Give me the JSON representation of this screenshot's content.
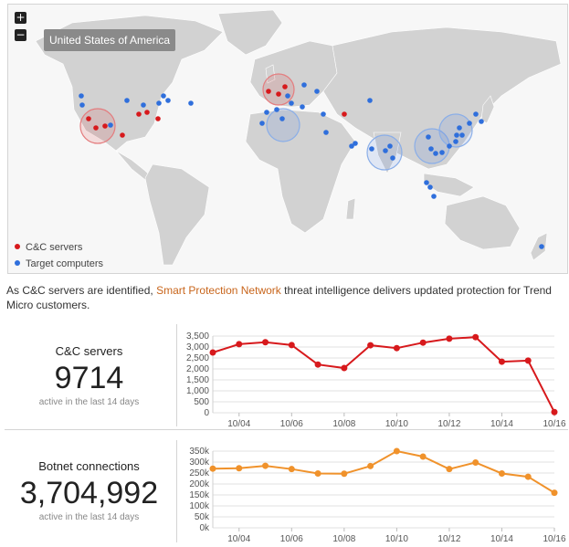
{
  "map": {
    "zoom_in": "+",
    "zoom_out": "−",
    "tooltip": "United States of America",
    "legend": [
      {
        "label": "C&C servers",
        "color": "#d7191c"
      },
      {
        "label": "Target computers",
        "color": "#2f6fdc"
      }
    ],
    "colors": {
      "land": "#d2d2d2",
      "water": "#f7f7f7",
      "cc": "#d7191c",
      "target": "#2f6fdc"
    }
  },
  "blurb": {
    "before": "As C&C servers are identified, ",
    "link": "Smart Protection Network",
    "after": " threat intelligence delivers updated protection for Trend Micro customers."
  },
  "stats": [
    {
      "label": "C&C servers",
      "value": "9714",
      "sub": "active in the last 14 days"
    },
    {
      "label": "Botnet connections",
      "value": "3,704,992",
      "sub": "active in the last 14 days"
    }
  ],
  "chart_data": [
    {
      "type": "line",
      "x": [
        "10/03",
        "10/04",
        "10/05",
        "10/06",
        "10/07",
        "10/08",
        "10/09",
        "10/10",
        "10/11",
        "10/12",
        "10/13",
        "10/14",
        "10/15",
        "10/16"
      ],
      "x_tick_labels": [
        "10/04",
        "10/06",
        "10/08",
        "10/10",
        "10/12",
        "10/14",
        "10/16"
      ],
      "series": [
        {
          "values": [
            2750,
            3130,
            3220,
            3090,
            2200,
            2040,
            3080,
            2950,
            3200,
            3380,
            3450,
            2330,
            2380,
            30
          ]
        }
      ],
      "ylim": [
        0,
        3500
      ],
      "y_ticks": [
        "0",
        "500",
        "1,000",
        "1,500",
        "2,000",
        "2,500",
        "3,000",
        "3,500"
      ],
      "color": "#d7191c",
      "grid": true
    },
    {
      "type": "line",
      "x": [
        "10/03",
        "10/04",
        "10/05",
        "10/06",
        "10/07",
        "10/08",
        "10/09",
        "10/10",
        "10/11",
        "10/12",
        "10/13",
        "10/14",
        "10/15",
        "10/16"
      ],
      "x_tick_labels": [
        "10/04",
        "10/06",
        "10/08",
        "10/10",
        "10/12",
        "10/14",
        "10/16"
      ],
      "series": [
        {
          "values": [
            270000,
            272000,
            283000,
            268000,
            248000,
            247000,
            282000,
            350000,
            325000,
            268000,
            298000,
            248000,
            233000,
            160000
          ]
        }
      ],
      "ylim": [
        0,
        350000
      ],
      "y_ticks": [
        "0k",
        "50k",
        "100k",
        "150k",
        "200k",
        "250k",
        "300k",
        "350k"
      ],
      "color": "#f0922b",
      "grid": true
    }
  ]
}
